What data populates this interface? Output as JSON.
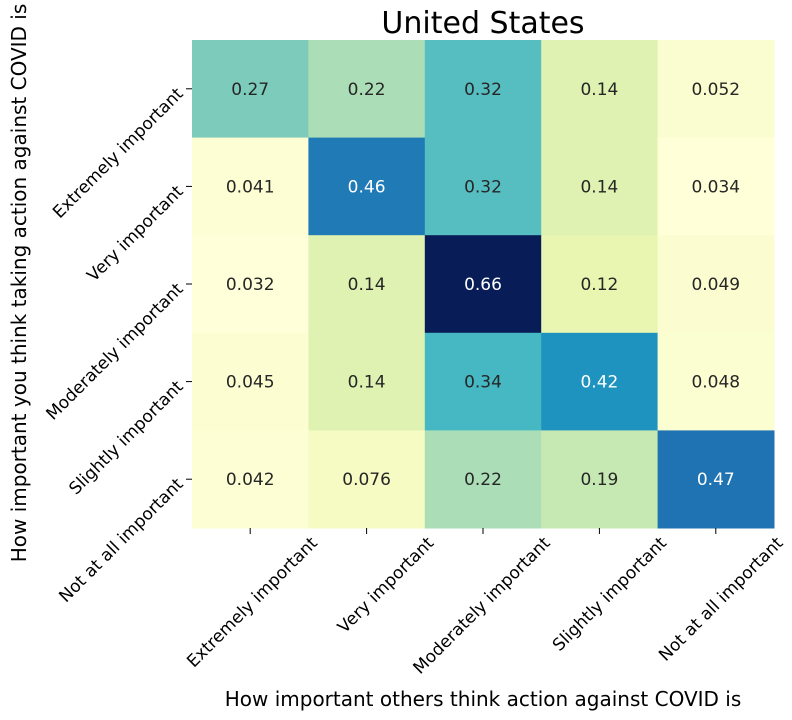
{
  "chart_data": {
    "type": "heatmap",
    "title": "United States",
    "xlabel": "How important others think action against COVID is",
    "ylabel": "How important you think taking action against COVID is",
    "x_categories": [
      "Extremely important",
      "Very important",
      "Moderately important",
      "Slightly important",
      "Not at all important"
    ],
    "y_categories": [
      "Extremely important",
      "Very important",
      "Moderately important",
      "Slightly important",
      "Not at all important"
    ],
    "values": [
      [
        0.27,
        0.22,
        0.32,
        0.14,
        0.052
      ],
      [
        0.041,
        0.46,
        0.32,
        0.14,
        0.034
      ],
      [
        0.032,
        0.14,
        0.66,
        0.12,
        0.049
      ],
      [
        0.045,
        0.14,
        0.34,
        0.42,
        0.048
      ],
      [
        0.042,
        0.076,
        0.22,
        0.19,
        0.47
      ]
    ],
    "value_labels": [
      [
        "0.27",
        "0.22",
        "0.32",
        "0.14",
        "0.052"
      ],
      [
        "0.041",
        "0.46",
        "0.32",
        "0.14",
        "0.034"
      ],
      [
        "0.032",
        "0.14",
        "0.66",
        "0.12",
        "0.049"
      ],
      [
        "0.045",
        "0.14",
        "0.34",
        "0.42",
        "0.048"
      ],
      [
        "0.042",
        "0.076",
        "0.22",
        "0.19",
        "0.47"
      ]
    ],
    "colormap": "YlGnBu",
    "colorbar": false,
    "light_text_color": "#ffffff",
    "dark_text_color": "#262626"
  }
}
